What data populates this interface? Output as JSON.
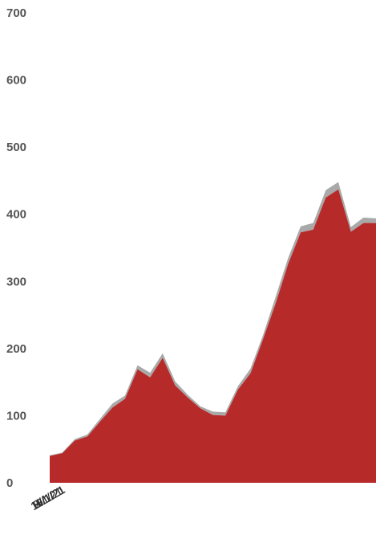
{
  "chart_data": {
    "type": "area",
    "title": "",
    "xlabel": "",
    "ylabel": "",
    "ylim": [
      0,
      700
    ],
    "yticks": [
      "0",
      "100",
      "200",
      "300",
      "400",
      "500",
      "600",
      "700"
    ],
    "xtick_labels": [
      "7/1/21",
      "8/1/21",
      "9/1/21",
      "10/1/21",
      "11/1/21",
      "12/1/21"
    ],
    "x": [
      "7/1/21",
      "7/8/21",
      "7/15/21",
      "7/22/21",
      "7/29/21",
      "8/5/21",
      "8/12/21",
      "8/19/21",
      "8/26/21",
      "9/2/21",
      "9/9/21",
      "9/16/21",
      "9/23/21",
      "9/30/21",
      "10/7/21",
      "10/14/21",
      "10/21/21",
      "10/28/21",
      "11/4/21",
      "11/11/21",
      "11/18/21",
      "11/25/21",
      "12/2/21",
      "12/9/21",
      "12/16/21",
      "12/23/21",
      "12/30/21"
    ],
    "series": [
      {
        "values": [
          40,
          44,
          63,
          69,
          91,
          112,
          125,
          169,
          157,
          186,
          145,
          127,
          111,
          101,
          100,
          139,
          163,
          214,
          267,
          326,
          373,
          377,
          425,
          437,
          374,
          387,
          387
        ],
        "color": "#b72a2a"
      },
      {
        "values": [
          1,
          1,
          2,
          3,
          4,
          6,
          5,
          6,
          7,
          7,
          6,
          4,
          3,
          5,
          5,
          5,
          7,
          6,
          10,
          9,
          9,
          10,
          11,
          11,
          7,
          8,
          7
        ],
        "color": "#a9a9a9"
      }
    ],
    "grid": false,
    "legend": "none"
  }
}
